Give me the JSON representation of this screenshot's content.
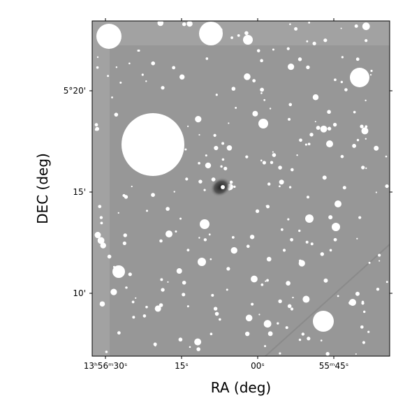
{
  "axes": {
    "x_label": "RA (deg)",
    "y_label": "DEC (deg)",
    "x_ticks": [
      "13ʰ56ᵐ30ˢ",
      "15ˢ",
      "00ˢ",
      "55ᵐ45ˢ"
    ],
    "y_ticks": [
      "5°20'",
      "15'",
      "10'"
    ]
  }
}
